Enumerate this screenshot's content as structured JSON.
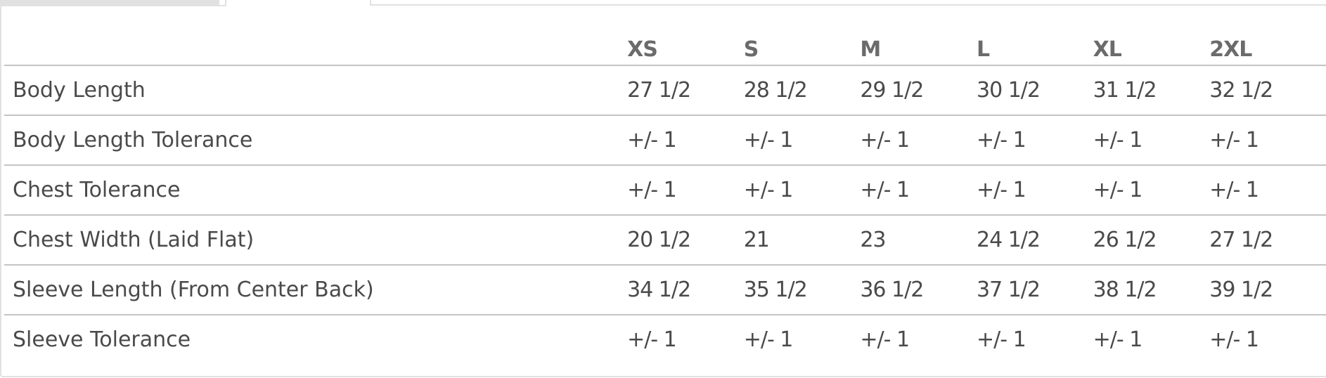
{
  "tabs": [
    {
      "label": ""
    },
    {
      "label": ""
    }
  ],
  "size_chart": {
    "headers": [
      "",
      "XS",
      "S",
      "M",
      "L",
      "XL",
      "2XL"
    ],
    "rows": [
      {
        "label": "Body Length",
        "values": [
          "27 1/2",
          "28 1/2",
          "29 1/2",
          "30 1/2",
          "31 1/2",
          "32 1/2"
        ]
      },
      {
        "label": "Body Length Tolerance",
        "values": [
          "+/- 1",
          "+/- 1",
          "+/- 1",
          "+/- 1",
          "+/- 1",
          "+/- 1"
        ]
      },
      {
        "label": "Chest Tolerance",
        "values": [
          "+/- 1",
          "+/- 1",
          "+/- 1",
          "+/- 1",
          "+/- 1",
          "+/- 1"
        ]
      },
      {
        "label": "Chest Width (Laid Flat)",
        "values": [
          "20 1/2",
          "21",
          "23",
          "24 1/2",
          "26 1/2",
          "27 1/2"
        ]
      },
      {
        "label": "Sleeve Length (From Center Back)",
        "values": [
          "34 1/2",
          "35 1/2",
          "36 1/2",
          "37 1/2",
          "38 1/2",
          "39 1/2"
        ]
      },
      {
        "label": "Sleeve Tolerance",
        "values": [
          "+/- 1",
          "+/- 1",
          "+/- 1",
          "+/- 1",
          "+/- 1",
          "+/- 1"
        ]
      }
    ]
  }
}
